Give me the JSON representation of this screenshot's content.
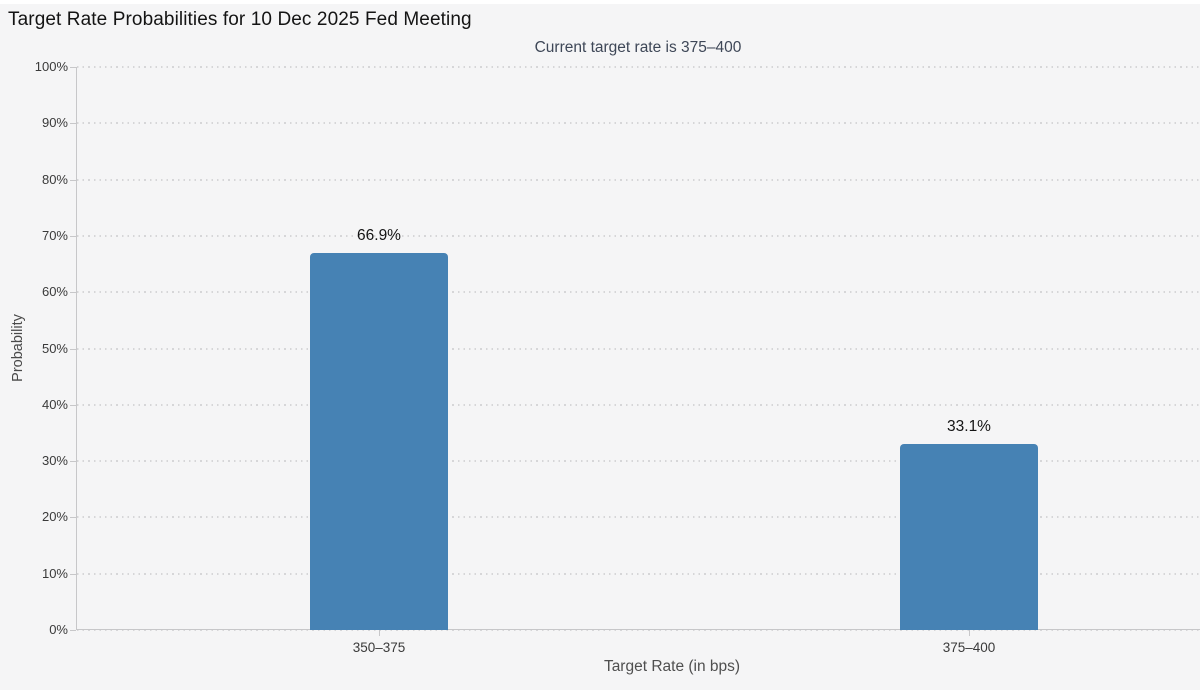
{
  "title": "Target Rate Probabilities for 10 Dec 2025 Fed Meeting",
  "subtitle": "Current target rate is 375–400",
  "colors": {
    "background": "#f5f5f6",
    "bar": "#4682b4",
    "axis": "#c7c7c9",
    "grid": "#d6d6d8",
    "title_text": "#141414",
    "subtitle_text": "#3e4757",
    "tick_text": "#3a3a3a",
    "axis_title_text": "#4f4f4f"
  },
  "chart_data": {
    "type": "bar",
    "title": "Target Rate Probabilities for 10 Dec 2025 Fed Meeting",
    "subtitle": "Current target rate is 375–400",
    "categories": [
      "350–375",
      "375–400"
    ],
    "values": [
      66.9,
      33.1
    ],
    "value_labels": [
      "66.9%",
      "33.1%"
    ],
    "xlabel": "Target Rate (in bps)",
    "ylabel": "Probability",
    "ylim": [
      0,
      100
    ],
    "ytick_step": 10,
    "ytick_labels": [
      "0%",
      "10%",
      "20%",
      "30%",
      "40%",
      "50%",
      "60%",
      "70%",
      "80%",
      "90%",
      "100%"
    ],
    "grid": "horizontal dotted",
    "legend": "none",
    "bar_color": "#4682b4"
  }
}
